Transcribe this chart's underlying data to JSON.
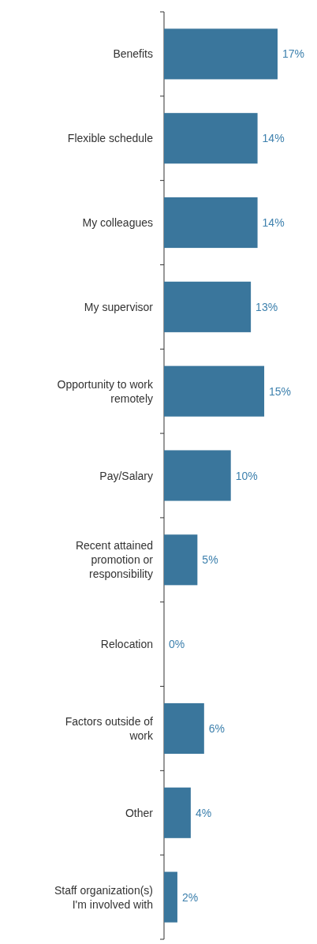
{
  "chart_data": {
    "type": "bar",
    "orientation": "horizontal",
    "categories": [
      "Benefits",
      "Flexible schedule",
      "My colleagues",
      "My supervisor",
      "Opportunity to work remotely",
      "Pay/Salary",
      "Recent attained promotion or responsibility",
      "Relocation",
      "Factors outside of work",
      "Other",
      "Staff organization(s) I'm involved with"
    ],
    "values": [
      17,
      14,
      14,
      13,
      15,
      10,
      5,
      0,
      6,
      4,
      2
    ],
    "value_labels": [
      "17%",
      "14%",
      "14%",
      "13%",
      "15%",
      "10%",
      "5%",
      "0%",
      "6%",
      "4%",
      "2%"
    ],
    "color": "#3a769c"
  }
}
